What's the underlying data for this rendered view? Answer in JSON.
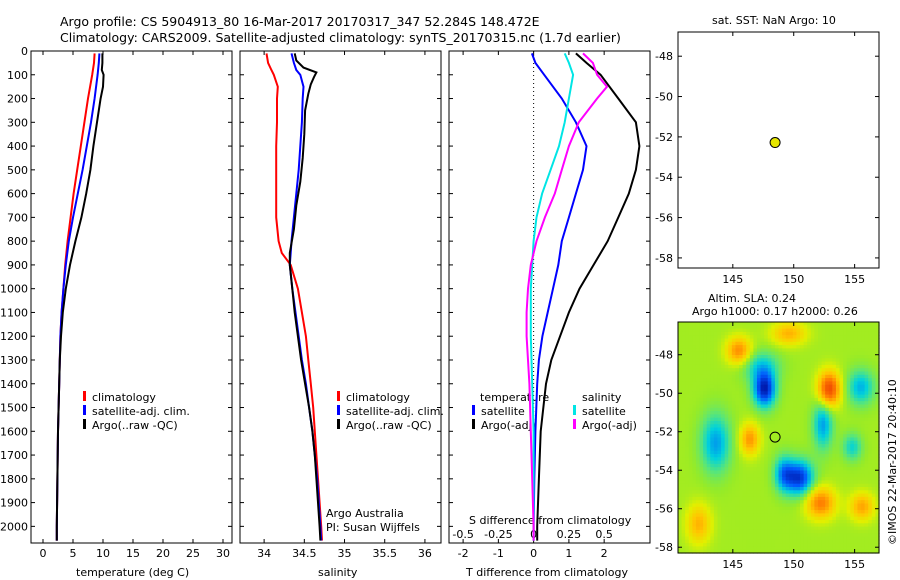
{
  "header": {
    "line1": "Argo profile: CS 5904913_80 16-Mar-2017 20170317_347 52.284S 148.472E",
    "line2": "Climatology: CARS2009. Satellite-adjusted climatology: synTS_20170315.nc (1.7d earlier)"
  },
  "colors": {
    "red": "#ff0000",
    "blue": "#0000ff",
    "black": "#000000",
    "cyan": "#00e5e5",
    "magenta": "#ff00ff",
    "marker": "#e6e600"
  },
  "depth_ticks": [
    "0",
    "100",
    "200",
    "300",
    "400",
    "500",
    "600",
    "700",
    "800",
    "900",
    "1000",
    "1100",
    "1200",
    "1300",
    "1400",
    "1500",
    "1600",
    "1700",
    "1800",
    "1900",
    "2000"
  ],
  "chart_data": [
    {
      "type": "line",
      "id": "temperature",
      "xlabel": "temperature (deg C)",
      "xlim": [
        -2,
        31.5
      ],
      "ylim": [
        2070,
        0
      ],
      "xticks": [
        "0",
        "5",
        "10",
        "15",
        "20",
        "25",
        "30"
      ],
      "legend": [
        "climatology",
        "satellite-adj. clim.",
        "Argo(..raw -QC)"
      ],
      "series": [
        {
          "name": "climatology",
          "color": "red",
          "depth": [
            10,
            50,
            100,
            200,
            300,
            400,
            500,
            600,
            700,
            800,
            900,
            1000,
            1100,
            1200,
            1400,
            1600,
            1800,
            2000,
            2060
          ],
          "values": [
            8.6,
            8.5,
            8.2,
            7.5,
            6.9,
            6.3,
            5.7,
            5.1,
            4.6,
            4.1,
            3.7,
            3.4,
            3.1,
            2.9,
            2.7,
            2.5,
            2.4,
            2.3,
            2.3
          ]
        },
        {
          "name": "satellite-adj. clim.",
          "color": "blue",
          "depth": [
            10,
            50,
            100,
            200,
            300,
            400,
            500,
            600,
            700,
            800,
            900,
            1000,
            1100,
            1200,
            1400,
            1600,
            1800,
            2000,
            2060
          ],
          "values": [
            9.4,
            9.3,
            9.1,
            8.6,
            8.0,
            7.3,
            6.6,
            5.8,
            5.0,
            4.3,
            3.8,
            3.4,
            3.1,
            2.9,
            2.7,
            2.5,
            2.4,
            2.3,
            2.3
          ]
        },
        {
          "name": "Argo(..raw -QC)",
          "color": "black",
          "depth": [
            10,
            50,
            80,
            100,
            150,
            200,
            300,
            400,
            500,
            600,
            700,
            800,
            900,
            1000,
            1100,
            1200,
            1300,
            1400,
            1600,
            1800,
            2000,
            2060
          ],
          "values": [
            9.9,
            9.9,
            9.8,
            10.1,
            10.0,
            9.6,
            9.0,
            8.4,
            7.9,
            7.2,
            6.4,
            5.4,
            4.5,
            3.8,
            3.3,
            3.0,
            2.8,
            2.7,
            2.5,
            2.4,
            2.3,
            2.3
          ]
        }
      ]
    },
    {
      "type": "line",
      "id": "salinity",
      "xlabel": "salinity",
      "xlim": [
        33.7,
        36.2
      ],
      "ylim": [
        2070,
        0
      ],
      "xticks": [
        "34",
        "34.5",
        "35",
        "35.5",
        "36"
      ],
      "legend": [
        "climatology",
        "satellite-adj. clim.",
        "Argo(..raw -QC)"
      ],
      "annotation": [
        "Argo Australia",
        "PI: Susan Wijffels"
      ],
      "series": [
        {
          "name": "climatology",
          "color": "red",
          "depth": [
            10,
            50,
            80,
            100,
            150,
            200,
            300,
            400,
            500,
            600,
            700,
            800,
            850,
            900,
            1000,
            1100,
            1200,
            1300,
            1400,
            1500,
            1600,
            1700,
            1800,
            1900,
            2000,
            2060
          ],
          "values": [
            34.03,
            34.05,
            34.09,
            34.12,
            34.17,
            34.16,
            34.16,
            34.15,
            34.15,
            34.15,
            34.15,
            34.18,
            34.22,
            34.33,
            34.42,
            34.47,
            34.52,
            34.55,
            34.58,
            34.61,
            34.63,
            34.65,
            34.67,
            34.69,
            34.71,
            34.72
          ]
        },
        {
          "name": "satellite-adj. clim.",
          "color": "blue",
          "depth": [
            10,
            50,
            80,
            100,
            150,
            200,
            300,
            400,
            500,
            600,
            700,
            800,
            850,
            900,
            1000,
            1100,
            1200,
            1300,
            1400,
            1500,
            1600,
            1700,
            1800,
            1900,
            2000,
            2060
          ],
          "values": [
            34.34,
            34.37,
            34.4,
            34.45,
            34.49,
            34.48,
            34.47,
            34.45,
            34.43,
            34.4,
            34.37,
            34.34,
            34.33,
            34.32,
            34.35,
            34.39,
            34.43,
            34.47,
            34.52,
            34.56,
            34.6,
            34.63,
            34.66,
            34.68,
            34.7,
            34.71
          ]
        },
        {
          "name": "Argo(..raw -QC)",
          "color": "black",
          "depth": [
            10,
            40,
            70,
            90,
            110,
            140,
            180,
            250,
            350,
            450,
            550,
            650,
            750,
            850,
            900,
            1000,
            1100,
            1200,
            1300,
            1400,
            1500,
            1600,
            1700,
            1800,
            1900,
            2000,
            2060
          ],
          "values": [
            34.38,
            34.4,
            34.49,
            34.65,
            34.62,
            34.58,
            34.55,
            34.51,
            34.5,
            34.48,
            34.45,
            34.4,
            34.37,
            34.32,
            34.32,
            34.35,
            34.38,
            34.42,
            34.46,
            34.51,
            34.56,
            34.6,
            34.63,
            34.65,
            34.67,
            34.69,
            34.7
          ]
        }
      ]
    },
    {
      "type": "line",
      "id": "difference",
      "xlabel": "T difference from climatology",
      "xlabel_top": "S difference from climatology",
      "xlim": [
        -2.4,
        3.3
      ],
      "ylim": [
        2070,
        0
      ],
      "xticks": [
        "-2",
        "-1",
        "0",
        "1",
        "2"
      ],
      "xticks_S": [
        "-0.5",
        "-0.25",
        "0",
        "0.25",
        "0.5"
      ],
      "zero_line": 0,
      "legend_titles": [
        "temperature",
        "salinity"
      ],
      "legend": [
        "satellite",
        "Argo(-adj)",
        "satellite",
        "Argo(-adj)"
      ],
      "series": [
        {
          "name": "satellite",
          "group": "temperature",
          "color": "blue",
          "depth": [
            10,
            50,
            100,
            200,
            300,
            400,
            500,
            600,
            700,
            800,
            900,
            1000,
            1100,
            1200,
            1300,
            1400,
            1600,
            1800,
            2000,
            2060
          ],
          "values": [
            -0.05,
            0.05,
            0.3,
            0.8,
            1.2,
            1.5,
            1.4,
            1.2,
            1.0,
            0.8,
            0.7,
            0.55,
            0.4,
            0.25,
            0.15,
            0.1,
            0.05,
            0.02,
            0.0,
            0.0
          ]
        },
        {
          "name": "Argo(-adj)",
          "group": "temperature",
          "color": "black",
          "depth": [
            10,
            50,
            100,
            200,
            300,
            400,
            500,
            600,
            700,
            800,
            900,
            1000,
            1100,
            1200,
            1300,
            1400,
            1600,
            1800,
            2000,
            2060
          ],
          "values": [
            1.2,
            1.5,
            1.9,
            2.4,
            2.9,
            3.0,
            2.9,
            2.7,
            2.4,
            2.1,
            1.7,
            1.3,
            1.0,
            0.75,
            0.5,
            0.35,
            0.2,
            0.15,
            0.1,
            0.1
          ]
        },
        {
          "name": "satellite",
          "group": "salinity",
          "color": "cyan",
          "depth": [
            10,
            50,
            100,
            200,
            300,
            400,
            500,
            600,
            700,
            800,
            900,
            1000,
            1200,
            1400,
            1600,
            1800,
            2000,
            2060
          ],
          "values": [
            0.22,
            0.25,
            0.28,
            0.25,
            0.22,
            0.18,
            0.12,
            0.06,
            0.02,
            0.0,
            -0.01,
            -0.02,
            -0.02,
            -0.01,
            0.0,
            0.0,
            0.0,
            0.0
          ]
        },
        {
          "name": "Argo(-adj)",
          "group": "salinity",
          "color": "magenta",
          "depth": [
            10,
            50,
            100,
            150,
            200,
            300,
            400,
            500,
            600,
            700,
            800,
            900,
            1000,
            1100,
            1200,
            1300,
            1400,
            1600,
            1800,
            2000,
            2060
          ],
          "values": [
            0.35,
            0.42,
            0.45,
            0.52,
            0.45,
            0.32,
            0.25,
            0.2,
            0.15,
            0.08,
            0.02,
            -0.02,
            -0.04,
            -0.05,
            -0.05,
            -0.04,
            -0.03,
            -0.02,
            -0.01,
            0.0,
            0.0
          ]
        }
      ]
    },
    {
      "type": "scatter",
      "id": "sst-map",
      "title": "sat. SST: NaN Argo: 10",
      "xlim": [
        140.5,
        157
      ],
      "ylim": [
        -58.5,
        -46.8
      ],
      "xticks": [
        "145",
        "150",
        "155"
      ],
      "yticks": [
        "-48",
        "-50",
        "-52",
        "-54",
        "-56",
        "-58"
      ],
      "points": [
        {
          "x": 148.47,
          "y": -52.28
        }
      ]
    },
    {
      "type": "heatmap",
      "id": "sla-map",
      "title1": "Altim. SLA: 0.24",
      "title2": "Argo h1000: 0.17 h2000: 0.26",
      "xlim": [
        140.5,
        157
      ],
      "ylim": [
        -58.3,
        -46.3
      ],
      "xticks": [
        "145",
        "150",
        "155"
      ],
      "yticks": [
        "-48",
        "-50",
        "-52",
        "-54",
        "-56",
        "-58"
      ],
      "points": [
        {
          "x": 148.47,
          "y": -52.28
        }
      ],
      "blobs": [
        {
          "x": 147.6,
          "y": -49.8,
          "sx": 0.9,
          "sy": 0.9,
          "v": -1.8
        },
        {
          "x": 147.3,
          "y": -48.6,
          "sx": 1.5,
          "sy": 0.8,
          "v": -0.7
        },
        {
          "x": 150.5,
          "y": -54.4,
          "sx": 1.1,
          "sy": 0.9,
          "v": -1.6
        },
        {
          "x": 149.2,
          "y": -54.2,
          "sx": 0.8,
          "sy": 0.9,
          "v": -1.1
        },
        {
          "x": 143.6,
          "y": -52.6,
          "sx": 1.2,
          "sy": 1.5,
          "v": -1.0
        },
        {
          "x": 152.4,
          "y": -51.6,
          "sx": 0.8,
          "sy": 1.3,
          "v": -1.0
        },
        {
          "x": 155.5,
          "y": -49.7,
          "sx": 1.1,
          "sy": 0.9,
          "v": -0.9
        },
        {
          "x": 154.8,
          "y": -52.8,
          "sx": 0.8,
          "sy": 0.7,
          "v": -0.7
        },
        {
          "x": 145.5,
          "y": -47.8,
          "sx": 1.0,
          "sy": 0.7,
          "v": 1.1
        },
        {
          "x": 152.9,
          "y": -49.8,
          "sx": 0.9,
          "sy": 0.9,
          "v": 1.7
        },
        {
          "x": 152.2,
          "y": -55.7,
          "sx": 1.2,
          "sy": 0.8,
          "v": 1.2
        },
        {
          "x": 146.4,
          "y": -52.4,
          "sx": 0.8,
          "sy": 0.8,
          "v": 1.0
        },
        {
          "x": 155.6,
          "y": -55.9,
          "sx": 1.0,
          "sy": 0.7,
          "v": 0.9
        },
        {
          "x": 142.2,
          "y": -56.8,
          "sx": 1.0,
          "sy": 1.0,
          "v": 0.8
        },
        {
          "x": 149.6,
          "y": -46.9,
          "sx": 1.4,
          "sy": 0.6,
          "v": 0.8
        }
      ]
    }
  ],
  "sidebar_label": "©IMOS 22-Mar-2017 20:40:10"
}
